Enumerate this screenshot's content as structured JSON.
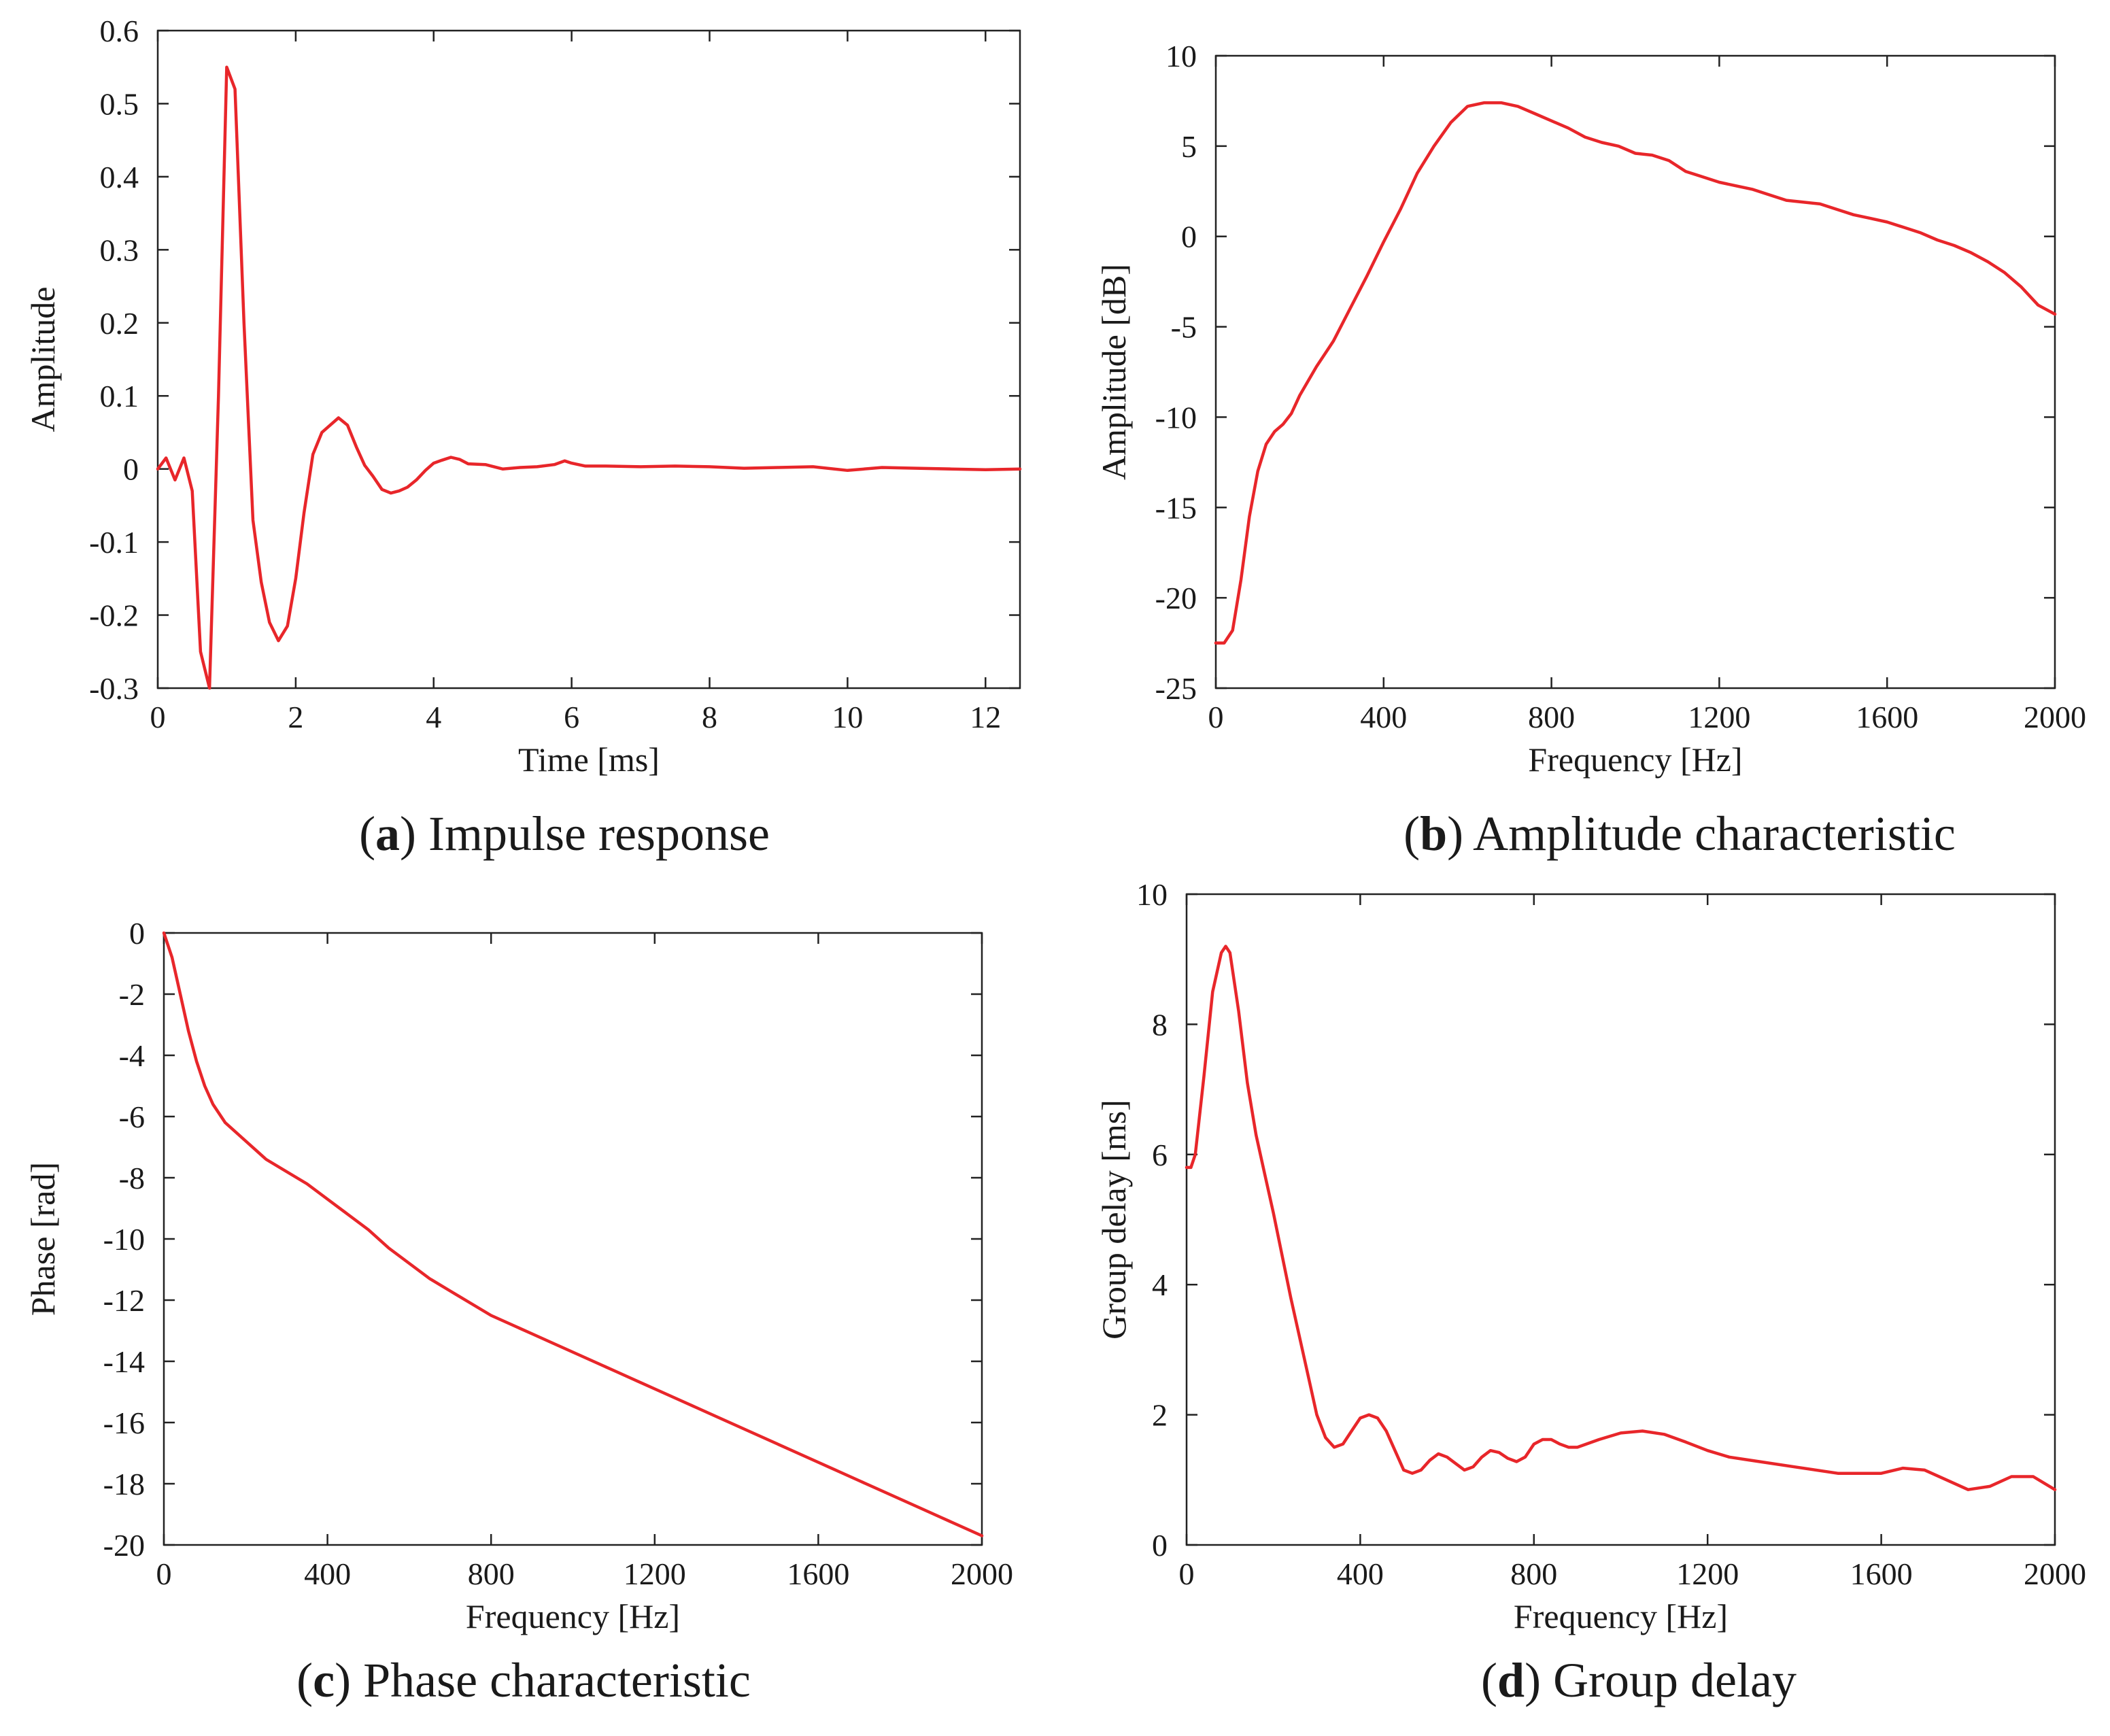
{
  "figure": {
    "line_color": "#e8262a"
  },
  "chart_data": [
    {
      "id": "a",
      "type": "line",
      "caption_letter": "a",
      "caption_text": "Impulse response",
      "xlabel": "Time [ms]",
      "ylabel": "Amplitude",
      "xlim": [
        0,
        12.5
      ],
      "ylim": [
        -0.3,
        0.6
      ],
      "xticks": [
        0,
        2,
        4,
        6,
        8,
        10,
        12
      ],
      "yticks": [
        -0.3,
        -0.2,
        -0.1,
        0,
        0.1,
        0.2,
        0.3,
        0.4,
        0.5,
        0.6
      ],
      "xtick_labels": [
        "0",
        "2",
        "4",
        "6",
        "8",
        "10",
        "12"
      ],
      "ytick_labels": [
        "-0.3",
        "-0.2",
        "-0.1",
        "0",
        "0.1",
        "0.2",
        "0.3",
        "0.4",
        "0.5",
        "0.6"
      ],
      "series": [
        {
          "name": "impulse response",
          "x": [
            0,
            0.12,
            0.25,
            0.38,
            0.5,
            0.62,
            0.75,
            0.88,
            1.0,
            1.12,
            1.25,
            1.38,
            1.5,
            1.62,
            1.75,
            1.88,
            2.0,
            2.12,
            2.25,
            2.38,
            2.5,
            2.62,
            2.75,
            2.88,
            3.0,
            3.12,
            3.25,
            3.38,
            3.5,
            3.62,
            3.75,
            3.88,
            4.0,
            4.12,
            4.25,
            4.38,
            4.5,
            4.75,
            5.0,
            5.25,
            5.5,
            5.75,
            5.9,
            6.0,
            6.2,
            6.5,
            7.0,
            7.5,
            8.0,
            8.5,
            9.0,
            9.5,
            10.0,
            10.5,
            11.0,
            11.5,
            12.0,
            12.5
          ],
          "y": [
            0,
            0.015,
            -0.015,
            0.015,
            -0.03,
            -0.25,
            -0.3,
            0.1,
            0.55,
            0.52,
            0.2,
            -0.07,
            -0.155,
            -0.21,
            -0.235,
            -0.215,
            -0.15,
            -0.06,
            0.02,
            0.05,
            0.06,
            0.07,
            0.06,
            0.03,
            0.005,
            -0.01,
            -0.028,
            -0.033,
            -0.03,
            -0.025,
            -0.015,
            -0.002,
            0.008,
            0.012,
            0.016,
            0.013,
            0.007,
            0.006,
            0.0,
            0.002,
            0.003,
            0.006,
            0.011,
            0.008,
            0.004,
            0.004,
            0.003,
            0.004,
            0.003,
            0.001,
            0.002,
            0.003,
            -0.002,
            0.002,
            0.001,
            0.0,
            -0.001,
            0.0
          ]
        }
      ]
    },
    {
      "id": "b",
      "type": "line",
      "caption_letter": "b",
      "caption_text": "Amplitude characteristic",
      "xlabel": "Frequency [Hz]",
      "ylabel": "Amplitude [dB]",
      "xlim": [
        0,
        2000
      ],
      "ylim": [
        -25,
        10
      ],
      "xticks": [
        0,
        400,
        800,
        1200,
        1600,
        2000
      ],
      "yticks": [
        -25,
        -20,
        -15,
        -10,
        -5,
        0,
        5,
        10
      ],
      "xtick_labels": [
        "0",
        "400",
        "800",
        "1200",
        "1600",
        "2000"
      ],
      "ytick_labels": [
        "-25",
        "-20",
        "-15",
        "-10",
        "-5",
        "0",
        "5",
        "10"
      ],
      "series": [
        {
          "name": "amplitude",
          "x": [
            0,
            20,
            40,
            60,
            80,
            100,
            120,
            140,
            160,
            180,
            200,
            240,
            280,
            320,
            360,
            400,
            440,
            480,
            520,
            560,
            600,
            640,
            680,
            720,
            760,
            800,
            840,
            880,
            920,
            960,
            1000,
            1040,
            1080,
            1120,
            1160,
            1200,
            1240,
            1280,
            1320,
            1360,
            1400,
            1440,
            1480,
            1520,
            1560,
            1600,
            1640,
            1680,
            1720,
            1760,
            1800,
            1840,
            1880,
            1920,
            1960,
            2000
          ],
          "y": [
            -22.5,
            -22.5,
            -21.8,
            -19.0,
            -15.5,
            -13.0,
            -11.5,
            -10.8,
            -10.4,
            -9.8,
            -8.8,
            -7.2,
            -5.8,
            -4.0,
            -2.2,
            -0.3,
            1.5,
            3.5,
            5.0,
            6.3,
            7.2,
            7.4,
            7.4,
            7.2,
            6.8,
            6.4,
            6.0,
            5.5,
            5.2,
            5.0,
            4.6,
            4.5,
            4.2,
            3.6,
            3.3,
            3.0,
            2.8,
            2.6,
            2.3,
            2.0,
            1.9,
            1.8,
            1.5,
            1.2,
            1.0,
            0.8,
            0.5,
            0.2,
            -0.2,
            -0.5,
            -0.9,
            -1.4,
            -2.0,
            -2.8,
            -3.8,
            -4.3
          ]
        }
      ]
    },
    {
      "id": "c",
      "type": "line",
      "caption_letter": "c",
      "caption_text": "Phase characteristic",
      "xlabel": "Frequency [Hz]",
      "ylabel": "Phase [rad]",
      "xlim": [
        0,
        2000
      ],
      "ylim": [
        -20,
        0
      ],
      "xticks": [
        0,
        400,
        800,
        1200,
        1600,
        2000
      ],
      "yticks": [
        -20,
        -18,
        -16,
        -14,
        -12,
        -10,
        -8,
        -6,
        -4,
        -2,
        0
      ],
      "xtick_labels": [
        "0",
        "400",
        "800",
        "1200",
        "1600",
        "2000"
      ],
      "ytick_labels": [
        "-20",
        "-18",
        "-16",
        "-14",
        "-12",
        "-10",
        "-8",
        "-6",
        "-4",
        "-2",
        "0"
      ],
      "series": [
        {
          "name": "phase",
          "x": [
            0,
            20,
            40,
            60,
            80,
            100,
            120,
            150,
            200,
            250,
            300,
            350,
            400,
            450,
            500,
            550,
            600,
            650,
            700,
            750,
            800,
            850,
            900,
            950,
            1000,
            1050,
            1100,
            1150,
            1200,
            1250,
            1300,
            1350,
            1400,
            1450,
            1500,
            1550,
            1600,
            1650,
            1700,
            1750,
            1800,
            1850,
            1900,
            1950,
            2000
          ],
          "y": [
            0,
            -0.8,
            -2.0,
            -3.2,
            -4.2,
            -5.0,
            -5.6,
            -6.2,
            -6.8,
            -7.4,
            -7.8,
            -8.2,
            -8.7,
            -9.2,
            -9.7,
            -10.3,
            -10.8,
            -11.3,
            -11.7,
            -12.1,
            -12.5,
            -12.8,
            -13.1,
            -13.4,
            -13.7,
            -14.0,
            -14.3,
            -14.6,
            -14.9,
            -15.2,
            -15.5,
            -15.8,
            -16.1,
            -16.4,
            -16.7,
            -17.0,
            -17.3,
            -17.6,
            -17.9,
            -18.2,
            -18.5,
            -18.8,
            -19.1,
            -19.4,
            -19.7
          ]
        }
      ]
    },
    {
      "id": "d",
      "type": "line",
      "caption_letter": "d",
      "caption_text": "Group delay",
      "xlabel": "Frequency [Hz]",
      "ylabel": "Group delay [ms]",
      "xlim": [
        0,
        2000
      ],
      "ylim": [
        0,
        10
      ],
      "xticks": [
        0,
        400,
        800,
        1200,
        1600,
        2000
      ],
      "yticks": [
        0,
        2,
        4,
        6,
        8,
        10
      ],
      "xtick_labels": [
        "0",
        "400",
        "800",
        "1200",
        "1600",
        "2000"
      ],
      "ytick_labels": [
        "0",
        "2",
        "4",
        "6",
        "8",
        "10"
      ],
      "series": [
        {
          "name": "group delay",
          "x": [
            0,
            10,
            20,
            40,
            60,
            80,
            90,
            100,
            120,
            140,
            160,
            180,
            200,
            240,
            280,
            300,
            320,
            340,
            360,
            380,
            400,
            420,
            440,
            460,
            480,
            500,
            520,
            540,
            560,
            580,
            600,
            620,
            640,
            660,
            680,
            700,
            720,
            740,
            760,
            780,
            800,
            820,
            840,
            860,
            880,
            900,
            950,
            1000,
            1050,
            1100,
            1150,
            1200,
            1250,
            1300,
            1400,
            1500,
            1600,
            1650,
            1700,
            1750,
            1800,
            1850,
            1900,
            1950,
            2000
          ],
          "y": [
            5.8,
            5.8,
            6.0,
            7.2,
            8.5,
            9.1,
            9.2,
            9.1,
            8.2,
            7.1,
            6.3,
            5.7,
            5.1,
            3.8,
            2.6,
            2.0,
            1.65,
            1.5,
            1.55,
            1.75,
            1.95,
            2.0,
            1.95,
            1.75,
            1.45,
            1.15,
            1.1,
            1.15,
            1.3,
            1.4,
            1.35,
            1.25,
            1.15,
            1.2,
            1.35,
            1.45,
            1.42,
            1.33,
            1.28,
            1.35,
            1.55,
            1.62,
            1.62,
            1.55,
            1.5,
            1.5,
            1.62,
            1.72,
            1.75,
            1.7,
            1.58,
            1.45,
            1.35,
            1.3,
            1.2,
            1.1,
            1.1,
            1.18,
            1.15,
            1.0,
            0.85,
            0.9,
            1.05,
            1.05,
            0.85
          ]
        }
      ]
    }
  ]
}
